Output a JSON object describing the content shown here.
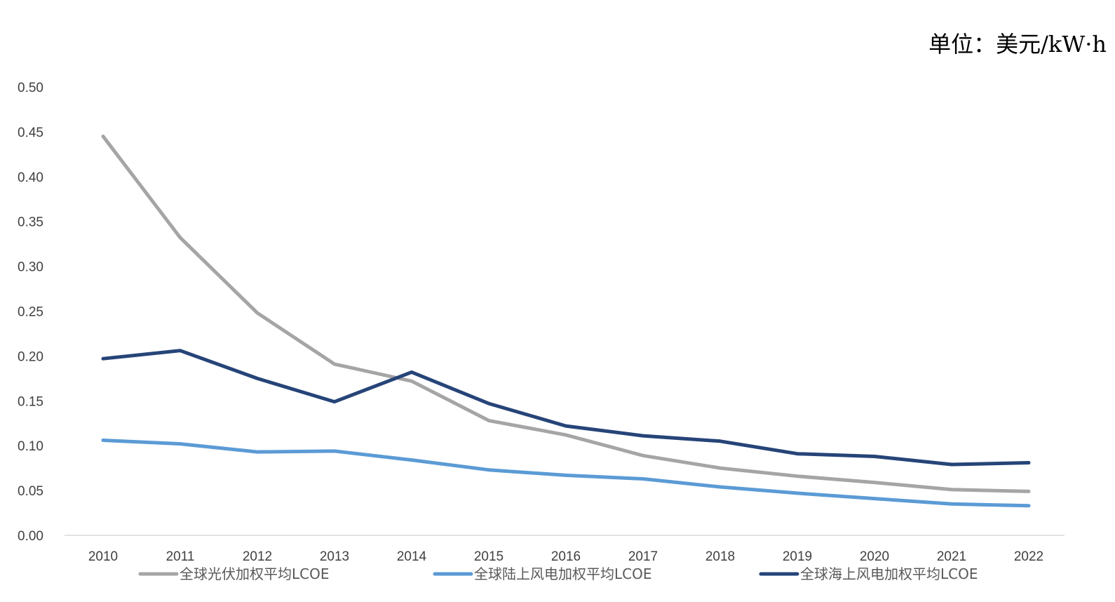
{
  "chart_data": {
    "type": "line",
    "title": "",
    "unit_label": "单位：美元/kW·h",
    "xlabel": "",
    "ylabel": "",
    "ylim": [
      0,
      0.5
    ],
    "y_ticks": [
      "0.00",
      "0.05",
      "0.10",
      "0.15",
      "0.20",
      "0.25",
      "0.30",
      "0.35",
      "0.40",
      "0.45",
      "0.50"
    ],
    "categories": [
      "2010",
      "2011",
      "2012",
      "2013",
      "2014",
      "2015",
      "2016",
      "2017",
      "2018",
      "2019",
      "2020",
      "2021",
      "2022"
    ],
    "grid": false,
    "legend_position": "bottom",
    "series": [
      {
        "name": "全球光伏加权平均LCOE",
        "color": "#A5A5A5",
        "values": [
          0.445,
          0.332,
          0.248,
          0.191,
          0.172,
          0.128,
          0.112,
          0.089,
          0.075,
          0.066,
          0.059,
          0.051,
          0.049
        ]
      },
      {
        "name": "全球陆上风电加权平均LCOE",
        "color": "#5B9BD5",
        "values": [
          0.106,
          0.102,
          0.093,
          0.094,
          0.084,
          0.073,
          0.067,
          0.063,
          0.054,
          0.047,
          0.041,
          0.035,
          0.033
        ]
      },
      {
        "name": "全球海上风电加权平均LCOE",
        "color": "#264478",
        "values": [
          0.197,
          0.206,
          0.175,
          0.149,
          0.182,
          0.147,
          0.122,
          0.111,
          0.105,
          0.091,
          0.088,
          0.079,
          0.081
        ]
      }
    ]
  }
}
